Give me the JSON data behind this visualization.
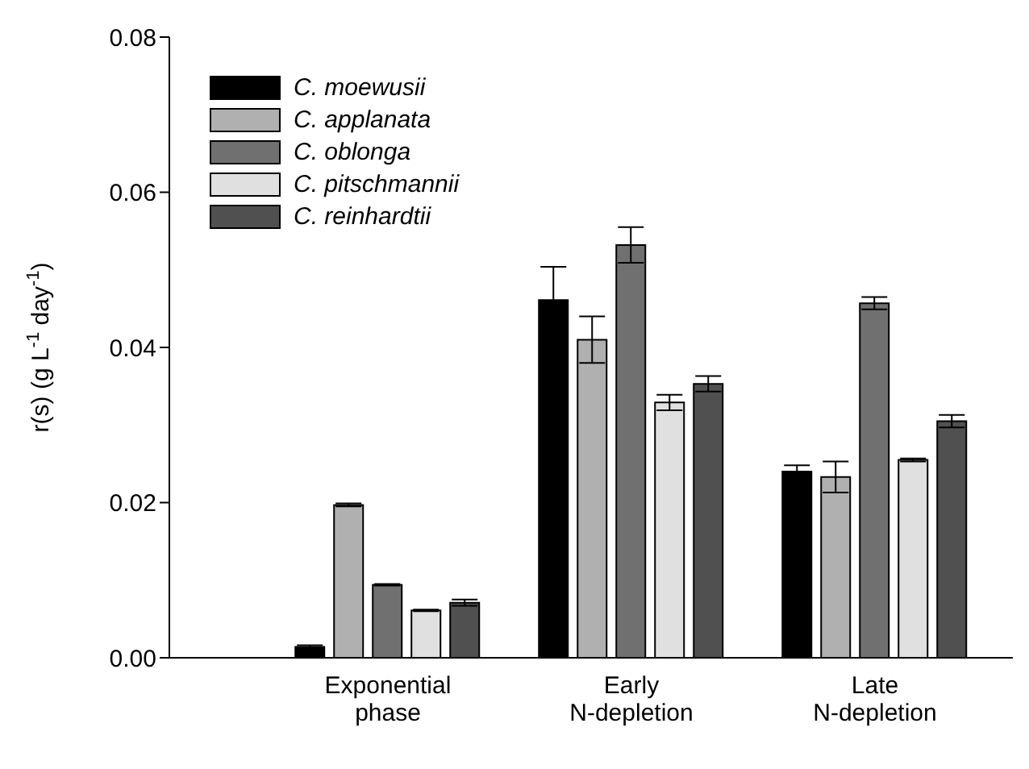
{
  "chart_data": {
    "type": "bar",
    "ylabel": "r(s) (g L$^{-1}$ day$^{-1}$)",
    "categories": [
      "Exponential phase",
      "Early N-depletion",
      "Late N-depletion"
    ],
    "series": [
      {
        "name": "C. moewusii",
        "color": "#000000",
        "values": [
          0.0014,
          0.0461,
          0.024
        ],
        "errors": [
          0.0002,
          0.0043,
          0.0008
        ]
      },
      {
        "name": "C. applanata",
        "color": "#b0b0b0",
        "values": [
          0.0197,
          0.041,
          0.0233
        ],
        "errors": [
          0.0002,
          0.003,
          0.002
        ]
      },
      {
        "name": "C. oblonga",
        "color": "#707070",
        "values": [
          0.0094,
          0.0532,
          0.0457
        ],
        "errors": [
          0.0001,
          0.0023,
          0.0008
        ]
      },
      {
        "name": "C. pitschmannii",
        "color": "#e0e0e0",
        "values": [
          0.0061,
          0.0329,
          0.0255
        ],
        "errors": [
          0.0001,
          0.001,
          0.0002
        ]
      },
      {
        "name": "C. reinhardtii",
        "color": "#505050",
        "values": [
          0.0071,
          0.0353,
          0.0305
        ],
        "errors": [
          0.0004,
          0.001,
          0.0008
        ]
      }
    ],
    "ylim": [
      0,
      0.08
    ],
    "yticks": [
      {
        "value": 0,
        "label": "0.00"
      },
      {
        "value": 0.02,
        "label": "0.02"
      },
      {
        "value": 0.04,
        "label": "0.04"
      },
      {
        "value": 0.06,
        "label": "0.06"
      },
      {
        "value": 0.08,
        "label": "0.08"
      }
    ],
    "legend": "top left",
    "grid": false
  }
}
